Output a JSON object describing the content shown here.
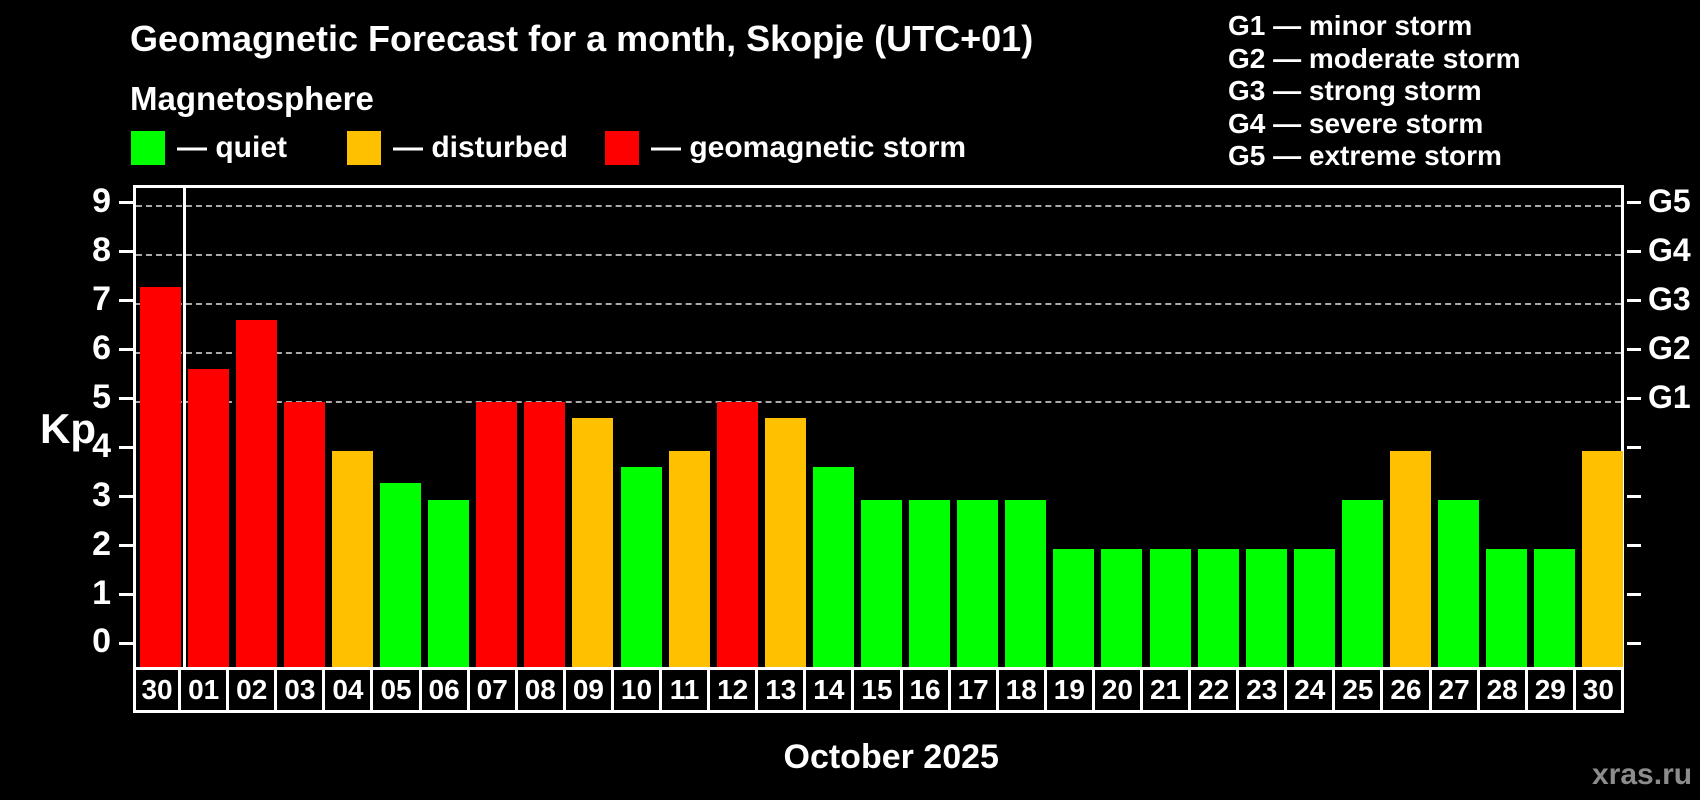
{
  "title": "Geomagnetic Forecast for a month, Skopje (UTC+01)",
  "subtitle": "Magnetosphere",
  "legend": {
    "quiet_label": "— quiet",
    "disturbed_label": "— disturbed",
    "storm_label": "— geomagnetic storm"
  },
  "g_legend": {
    "lines": [
      "G1 — minor storm",
      "G2 — moderate storm",
      "G3 — strong storm",
      "G4 — severe storm",
      "G5 — extreme storm"
    ]
  },
  "colors": {
    "quiet": "#00ff00",
    "disturbed": "#ffc000",
    "storm": "#ff0000",
    "grid": "#aaaaaa",
    "axis": "#ffffff",
    "watermark_text": "#8c8c8c",
    "background": "#000000"
  },
  "axis": {
    "kp_label": "Kp",
    "y_ticks": [
      0,
      1,
      2,
      3,
      4,
      5,
      6,
      7,
      8,
      9
    ],
    "right_labels": [
      {
        "kp": 9,
        "label": "G5"
      },
      {
        "kp": 8,
        "label": "G4"
      },
      {
        "kp": 7,
        "label": "G3"
      },
      {
        "kp": 6,
        "label": "G2"
      },
      {
        "kp": 5,
        "label": "G1"
      }
    ]
  },
  "xlabel": "October 2025",
  "watermark": "xras.ru",
  "chart_data": {
    "type": "bar",
    "title": "Geomagnetic Forecast for a month, Skopje (UTC+01)",
    "ylabel": "Kp",
    "xlabel": "October 2025",
    "ylim": [
      -0.48,
      9.36
    ],
    "gridlines_at": [
      5,
      6,
      7,
      8,
      9
    ],
    "grid": "dashed horizontal at storm levels only",
    "legend_position": "top",
    "separator_after_index": 0,
    "categories": [
      "30",
      "01",
      "02",
      "03",
      "04",
      "05",
      "06",
      "07",
      "08",
      "09",
      "10",
      "11",
      "12",
      "13",
      "14",
      "15",
      "16",
      "17",
      "18",
      "19",
      "20",
      "21",
      "22",
      "23",
      "24",
      "25",
      "26",
      "27",
      "28",
      "29",
      "30"
    ],
    "values": [
      7.33,
      5.67,
      6.67,
      5.0,
      4.0,
      3.33,
      3.0,
      5.0,
      5.0,
      4.67,
      3.67,
      4.0,
      5.0,
      4.67,
      3.67,
      3.0,
      3.0,
      3.0,
      3.0,
      2.0,
      2.0,
      2.0,
      2.0,
      2.0,
      2.0,
      3.0,
      4.0,
      3.0,
      2.0,
      2.0,
      4.0
    ],
    "status": [
      "storm",
      "storm",
      "storm",
      "storm",
      "disturbed",
      "quiet",
      "quiet",
      "storm",
      "storm",
      "disturbed",
      "quiet",
      "disturbed",
      "storm",
      "disturbed",
      "quiet",
      "quiet",
      "quiet",
      "quiet",
      "quiet",
      "quiet",
      "quiet",
      "quiet",
      "quiet",
      "quiet",
      "quiet",
      "quiet",
      "disturbed",
      "quiet",
      "quiet",
      "quiet",
      "disturbed"
    ]
  }
}
